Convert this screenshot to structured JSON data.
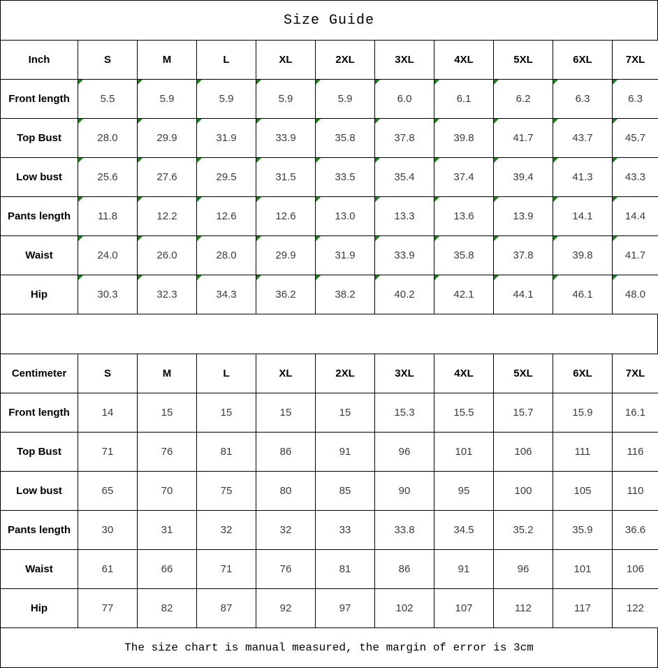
{
  "title": "Size Guide",
  "footer_note": "The size chart is manual measured, the margin of error is 3cm",
  "sizes": [
    "S",
    "M",
    "L",
    "XL",
    "2XL",
    "3XL",
    "4XL",
    "5XL",
    "6XL",
    "7XL"
  ],
  "tables": [
    {
      "unit": "Inch",
      "has_flag_markers": true,
      "rows": [
        {
          "label": "Front length",
          "values": [
            "5.5",
            "5.9",
            "5.9",
            "5.9",
            "5.9",
            "6.0",
            "6.1",
            "6.2",
            "6.3",
            "6.3"
          ]
        },
        {
          "label": "Top Bust",
          "values": [
            "28.0",
            "29.9",
            "31.9",
            "33.9",
            "35.8",
            "37.8",
            "39.8",
            "41.7",
            "43.7",
            "45.7"
          ]
        },
        {
          "label": "Low bust",
          "values": [
            "25.6",
            "27.6",
            "29.5",
            "31.5",
            "33.5",
            "35.4",
            "37.4",
            "39.4",
            "41.3",
            "43.3"
          ]
        },
        {
          "label": "Pants length",
          "values": [
            "11.8",
            "12.2",
            "12.6",
            "12.6",
            "13.0",
            "13.3",
            "13.6",
            "13.9",
            "14.1",
            "14.4"
          ]
        },
        {
          "label": "Waist",
          "values": [
            "24.0",
            "26.0",
            "28.0",
            "29.9",
            "31.9",
            "33.9",
            "35.8",
            "37.8",
            "39.8",
            "41.7"
          ]
        },
        {
          "label": "Hip",
          "values": [
            "30.3",
            "32.3",
            "34.3",
            "36.2",
            "38.2",
            "40.2",
            "42.1",
            "44.1",
            "46.1",
            "48.0"
          ]
        }
      ]
    },
    {
      "unit": "Centimeter",
      "has_flag_markers": false,
      "rows": [
        {
          "label": "Front length",
          "values": [
            "14",
            "15",
            "15",
            "15",
            "15",
            "15.3",
            "15.5",
            "15.7",
            "15.9",
            "16.1"
          ]
        },
        {
          "label": "Top Bust",
          "values": [
            "71",
            "76",
            "81",
            "86",
            "91",
            "96",
            "101",
            "106",
            "111",
            "116"
          ]
        },
        {
          "label": "Low bust",
          "values": [
            "65",
            "70",
            "75",
            "80",
            "85",
            "90",
            "95",
            "100",
            "105",
            "110"
          ]
        },
        {
          "label": "Pants length",
          "values": [
            "30",
            "31",
            "32",
            "32",
            "33",
            "33.8",
            "34.5",
            "35.2",
            "35.9",
            "36.6"
          ]
        },
        {
          "label": "Waist",
          "values": [
            "61",
            "66",
            "71",
            "76",
            "81",
            "86",
            "91",
            "96",
            "101",
            "106"
          ]
        },
        {
          "label": "Hip",
          "values": [
            "77",
            "82",
            "87",
            "92",
            "97",
            "102",
            "107",
            "112",
            "117",
            "122"
          ]
        }
      ]
    }
  ],
  "colors": {
    "border": "#000000",
    "flag_triangle": "#1e7d1e",
    "label_text": "#000000",
    "value_text": "#3b3b3b"
  }
}
